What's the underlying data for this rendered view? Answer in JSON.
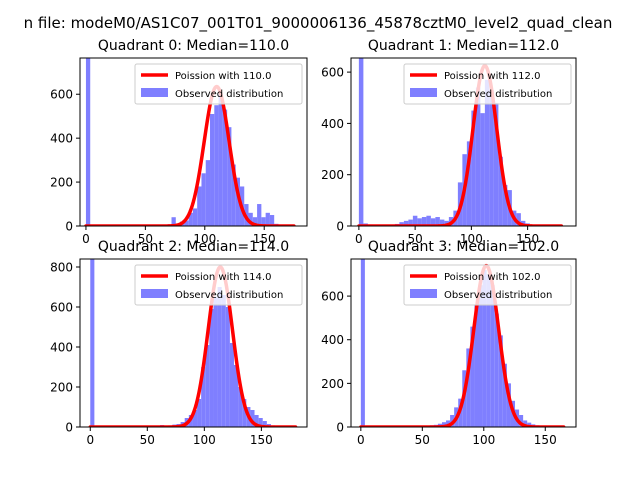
{
  "figure": {
    "suptitle": "n file: modeM0/AS1C07_001T01_9000006136_45878cztM0_level2_quad_clean"
  },
  "chart_data": [
    {
      "type": "bar",
      "title": "Quadrant 0: Median=110.0",
      "xlim": [
        -5,
        186
      ],
      "ylim": [
        0,
        765
      ],
      "xticks": [
        0,
        50,
        100,
        150
      ],
      "yticks": [
        0,
        200,
        400,
        600
      ],
      "grid": false,
      "legend_position": "upper right",
      "bin_width": 3.6,
      "bins": [
        {
          "x": 0,
          "y": 765
        },
        {
          "x": 50.4,
          "y": 2
        },
        {
          "x": 54,
          "y": 4
        },
        {
          "x": 57.6,
          "y": 3
        },
        {
          "x": 61.2,
          "y": 6
        },
        {
          "x": 64.8,
          "y": 5
        },
        {
          "x": 68.4,
          "y": 8
        },
        {
          "x": 72,
          "y": 40
        },
        {
          "x": 75.6,
          "y": 10
        },
        {
          "x": 79.2,
          "y": 20
        },
        {
          "x": 82.8,
          "y": 25
        },
        {
          "x": 86.4,
          "y": 60
        },
        {
          "x": 90,
          "y": 80
        },
        {
          "x": 93.6,
          "y": 180
        },
        {
          "x": 97.2,
          "y": 240
        },
        {
          "x": 100.8,
          "y": 300
        },
        {
          "x": 104.4,
          "y": 510
        },
        {
          "x": 108,
          "y": 550
        },
        {
          "x": 111.6,
          "y": 600
        },
        {
          "x": 115.2,
          "y": 530
        },
        {
          "x": 118.8,
          "y": 450
        },
        {
          "x": 122.4,
          "y": 280
        },
        {
          "x": 126,
          "y": 220
        },
        {
          "x": 129.6,
          "y": 180
        },
        {
          "x": 133.2,
          "y": 100
        },
        {
          "x": 136.8,
          "y": 60
        },
        {
          "x": 140.4,
          "y": 40
        },
        {
          "x": 144,
          "y": 100
        },
        {
          "x": 147.6,
          "y": 40
        },
        {
          "x": 151.2,
          "y": 60
        },
        {
          "x": 154.8,
          "y": 50
        },
        {
          "x": 158.4,
          "y": 10
        },
        {
          "x": 162,
          "y": 5
        },
        {
          "x": 165.6,
          "y": 3
        }
      ],
      "poisson_mean": 110.0,
      "poisson_peak": 635,
      "poisson_sigma": 10.49,
      "poisson_xrange": [
        0,
        175
      ],
      "series": [
        {
          "name": "Poission with 110.0",
          "kind": "line",
          "color": "#ff0000"
        },
        {
          "name": "Observed distribution",
          "kind": "bar",
          "color": "#7f7fff"
        }
      ]
    },
    {
      "type": "bar",
      "title": "Quadrant 1: Median=112.0",
      "xlim": [
        -7,
        193
      ],
      "ylim": [
        0,
        655
      ],
      "xticks": [
        0,
        50,
        100,
        150
      ],
      "yticks": [
        0,
        200,
        400,
        600
      ],
      "grid": false,
      "legend_position": "upper right",
      "bin_width": 4,
      "bins": [
        {
          "x": 0,
          "y": 655
        },
        {
          "x": 4,
          "y": 10
        },
        {
          "x": 8,
          "y": 6
        },
        {
          "x": 12,
          "y": 4
        },
        {
          "x": 16,
          "y": 3
        },
        {
          "x": 20,
          "y": 5
        },
        {
          "x": 24,
          "y": 4
        },
        {
          "x": 28,
          "y": 5
        },
        {
          "x": 32,
          "y": 8
        },
        {
          "x": 36,
          "y": 15
        },
        {
          "x": 40,
          "y": 20
        },
        {
          "x": 44,
          "y": 25
        },
        {
          "x": 48,
          "y": 40
        },
        {
          "x": 52,
          "y": 30
        },
        {
          "x": 56,
          "y": 35
        },
        {
          "x": 60,
          "y": 40
        },
        {
          "x": 64,
          "y": 30
        },
        {
          "x": 68,
          "y": 35
        },
        {
          "x": 72,
          "y": 25
        },
        {
          "x": 76,
          "y": 20
        },
        {
          "x": 80,
          "y": 35
        },
        {
          "x": 84,
          "y": 60
        },
        {
          "x": 88,
          "y": 170
        },
        {
          "x": 92,
          "y": 280
        },
        {
          "x": 96,
          "y": 330
        },
        {
          "x": 100,
          "y": 450
        },
        {
          "x": 104,
          "y": 540
        },
        {
          "x": 108,
          "y": 440
        },
        {
          "x": 112,
          "y": 570
        },
        {
          "x": 116,
          "y": 530
        },
        {
          "x": 120,
          "y": 480
        },
        {
          "x": 124,
          "y": 270
        },
        {
          "x": 128,
          "y": 160
        },
        {
          "x": 132,
          "y": 140
        },
        {
          "x": 136,
          "y": 60
        },
        {
          "x": 140,
          "y": 50
        },
        {
          "x": 144,
          "y": 20
        },
        {
          "x": 148,
          "y": 10
        },
        {
          "x": 152,
          "y": 4
        },
        {
          "x": 156,
          "y": 3
        },
        {
          "x": 160,
          "y": 2
        }
      ],
      "poisson_mean": 112.0,
      "poisson_peak": 625,
      "poisson_sigma": 10.58,
      "poisson_xrange": [
        0,
        180
      ],
      "series": [
        {
          "name": "Poission with 112.0",
          "kind": "line",
          "color": "#ff0000"
        },
        {
          "name": "Observed distribution",
          "kind": "bar",
          "color": "#7f7fff"
        }
      ]
    },
    {
      "type": "bar",
      "title": "Quadrant 2: Median=114.0",
      "xlim": [
        -9,
        190
      ],
      "ylim": [
        0,
        840
      ],
      "xticks": [
        0,
        50,
        100,
        150
      ],
      "yticks": [
        0,
        200,
        400,
        600,
        800
      ],
      "grid": false,
      "legend_position": "upper right",
      "bin_width": 3.6,
      "bins": [
        {
          "x": 0,
          "y": 840
        },
        {
          "x": 61.2,
          "y": 10
        },
        {
          "x": 64.8,
          "y": 6
        },
        {
          "x": 68.4,
          "y": 8
        },
        {
          "x": 72,
          "y": 12
        },
        {
          "x": 75.6,
          "y": 15
        },
        {
          "x": 79.2,
          "y": 25
        },
        {
          "x": 82.8,
          "y": 45
        },
        {
          "x": 86.4,
          "y": 60
        },
        {
          "x": 90,
          "y": 85
        },
        {
          "x": 93.6,
          "y": 140
        },
        {
          "x": 97.2,
          "y": 300
        },
        {
          "x": 100.8,
          "y": 410
        },
        {
          "x": 104.4,
          "y": 590
        },
        {
          "x": 108,
          "y": 650
        },
        {
          "x": 111.6,
          "y": 700
        },
        {
          "x": 115.2,
          "y": 660
        },
        {
          "x": 118.8,
          "y": 600
        },
        {
          "x": 122.4,
          "y": 420
        },
        {
          "x": 126,
          "y": 310
        },
        {
          "x": 129.6,
          "y": 200
        },
        {
          "x": 133.2,
          "y": 140
        },
        {
          "x": 136.8,
          "y": 100
        },
        {
          "x": 140.4,
          "y": 85
        },
        {
          "x": 144,
          "y": 60
        },
        {
          "x": 147.6,
          "y": 45
        },
        {
          "x": 151.2,
          "y": 30
        },
        {
          "x": 154.8,
          "y": 15
        },
        {
          "x": 158.4,
          "y": 8
        },
        {
          "x": 162,
          "y": 4
        },
        {
          "x": 165.6,
          "y": 2
        }
      ],
      "poisson_mean": 114.0,
      "poisson_peak": 800,
      "poisson_sigma": 10.68,
      "poisson_xrange": [
        0,
        180
      ],
      "series": [
        {
          "name": "Poission with 114.0",
          "kind": "line",
          "color": "#ff0000"
        },
        {
          "name": "Observed distribution",
          "kind": "bar",
          "color": "#7f7fff"
        }
      ]
    },
    {
      "type": "bar",
      "title": "Quadrant 3: Median=102.0",
      "xlim": [
        -8,
        175
      ],
      "ylim": [
        0,
        770
      ],
      "xticks": [
        0,
        50,
        100,
        150
      ],
      "yticks": [
        0,
        200,
        400,
        600
      ],
      "grid": false,
      "legend_position": "upper right",
      "bin_width": 3.3,
      "bins": [
        {
          "x": 0,
          "y": 770
        },
        {
          "x": 46.2,
          "y": 2
        },
        {
          "x": 49.5,
          "y": 3
        },
        {
          "x": 52.8,
          "y": 5
        },
        {
          "x": 56.1,
          "y": 8
        },
        {
          "x": 59.4,
          "y": 10
        },
        {
          "x": 62.7,
          "y": 15
        },
        {
          "x": 66,
          "y": 22
        },
        {
          "x": 69.3,
          "y": 30
        },
        {
          "x": 72.6,
          "y": 55
        },
        {
          "x": 75.9,
          "y": 90
        },
        {
          "x": 79.2,
          "y": 130
        },
        {
          "x": 82.5,
          "y": 260
        },
        {
          "x": 85.8,
          "y": 360
        },
        {
          "x": 89.1,
          "y": 460
        },
        {
          "x": 92.4,
          "y": 560
        },
        {
          "x": 95.7,
          "y": 650
        },
        {
          "x": 99,
          "y": 720
        },
        {
          "x": 102.3,
          "y": 700
        },
        {
          "x": 105.6,
          "y": 650
        },
        {
          "x": 108.9,
          "y": 520
        },
        {
          "x": 112.2,
          "y": 420
        },
        {
          "x": 115.5,
          "y": 290
        },
        {
          "x": 118.8,
          "y": 200
        },
        {
          "x": 122.1,
          "y": 120
        },
        {
          "x": 125.4,
          "y": 80
        },
        {
          "x": 128.7,
          "y": 55
        },
        {
          "x": 132,
          "y": 30
        },
        {
          "x": 135.3,
          "y": 20
        },
        {
          "x": 138.6,
          "y": 12
        },
        {
          "x": 141.9,
          "y": 8
        },
        {
          "x": 145.2,
          "y": 5
        },
        {
          "x": 148.5,
          "y": 3
        },
        {
          "x": 151.8,
          "y": 2
        }
      ],
      "poisson_mean": 102.0,
      "poisson_peak": 740,
      "poisson_sigma": 10.1,
      "poisson_xrange": [
        0,
        165
      ],
      "series": [
        {
          "name": "Poission with 102.0",
          "kind": "line",
          "color": "#ff0000"
        },
        {
          "name": "Observed distribution",
          "kind": "bar",
          "color": "#7f7fff"
        }
      ]
    }
  ]
}
